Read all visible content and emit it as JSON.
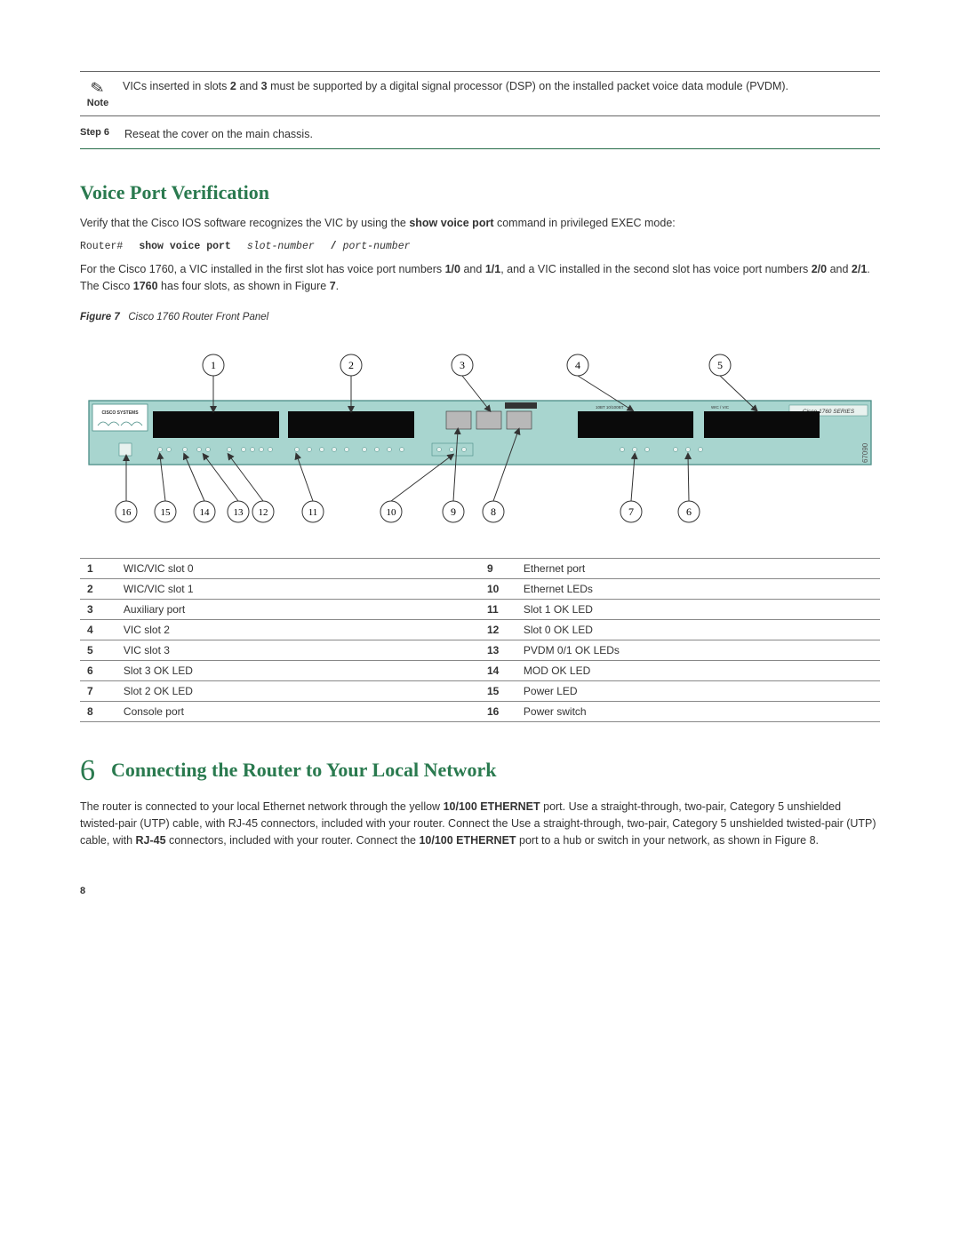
{
  "note": {
    "label": "Note",
    "text_pre": "VICs inserted in slots ",
    "slot_a": "2",
    "text_mid1": " and ",
    "slot_b": "3",
    "text_post": " must be supported by a digital signal processor (DSP) on the installed packet voice data module (PVDM)."
  },
  "step": {
    "label": "Step 6",
    "text": "Reseat the cover on the main chassis."
  },
  "voice_port": {
    "heading": "Voice Port Verification",
    "para1_pre": "Verify that the Cisco IOS software recognizes the VIC by using the ",
    "cmd": "show voice port",
    "para1_post": " command in privileged EXEC mode:",
    "code": {
      "prompt": "Router#",
      "cmd": "show voice port",
      "arg1": "slot-number",
      "sep": "/",
      "arg2": "port-number"
    },
    "para2": "For the Cisco 1760, a VIC installed in the first slot has voice port numbers 1/0 and 1/1, and a VIC installed in the second slot has voice port numbers 2/0 and 2/1. The Cisco 1760 has four slots, as shown in Figure 7."
  },
  "figure": {
    "caption_label": "Figure 7",
    "caption_text": "Cisco 1760 Router Front Panel",
    "router_label_brand": "CISCO SYSTEMS",
    "router_label_series": "Cisco 1760 SERIES",
    "side_num": "67090",
    "callouts_top": [
      "1",
      "2",
      "3",
      "4",
      "5"
    ],
    "callouts_bottom": [
      "16",
      "15",
      "14",
      "13",
      "12",
      "11",
      "10",
      "9",
      "8",
      "7",
      "6"
    ],
    "colors": {
      "router_body": "#a8d5cf",
      "router_border": "#4a8d86",
      "slot": "#0a0a0a",
      "circle_stroke": "#333",
      "arrow": "#333"
    }
  },
  "legend": {
    "rows_left": [
      {
        "n": "1",
        "d": "WIC/VIC slot 0"
      },
      {
        "n": "2",
        "d": "WIC/VIC slot 1"
      },
      {
        "n": "3",
        "d": "Auxiliary port"
      },
      {
        "n": "4",
        "d": "VIC slot 2"
      },
      {
        "n": "5",
        "d": "VIC slot 3"
      },
      {
        "n": "6",
        "d": "Slot 3 OK LED"
      },
      {
        "n": "7",
        "d": "Slot 2 OK LED"
      },
      {
        "n": "8",
        "d": "Console port"
      }
    ],
    "rows_right": [
      {
        "n": "9",
        "d": "Ethernet port"
      },
      {
        "n": "10",
        "d": "Ethernet LEDs"
      },
      {
        "n": "11",
        "d": "Slot 1 OK LED"
      },
      {
        "n": "12",
        "d": "Slot 0 OK LED"
      },
      {
        "n": "13",
        "d": "PVDM 0/1 OK LEDs"
      },
      {
        "n": "14",
        "d": "MOD OK LED"
      },
      {
        "n": "15",
        "d": "Power LED"
      },
      {
        "n": "16",
        "d": "Power switch"
      }
    ]
  },
  "section6": {
    "num": "6",
    "heading": "Connecting the Router to Your Local Network",
    "para_pre": "The router is connected to your local Ethernet network through the yellow ",
    "bold1": "10/100 ETHERNET",
    "para_mid1": " port. Use a straight-through, two-pair, Category 5 unshielded twisted-pair (UTP) cable, with RJ-45 connectors, included with your router. Connect the ",
    "bold2": "10/100 ETHERNET",
    "para_post": " port to a hub or switch in your network, as shown in Figure 8."
  },
  "page_number": "8"
}
